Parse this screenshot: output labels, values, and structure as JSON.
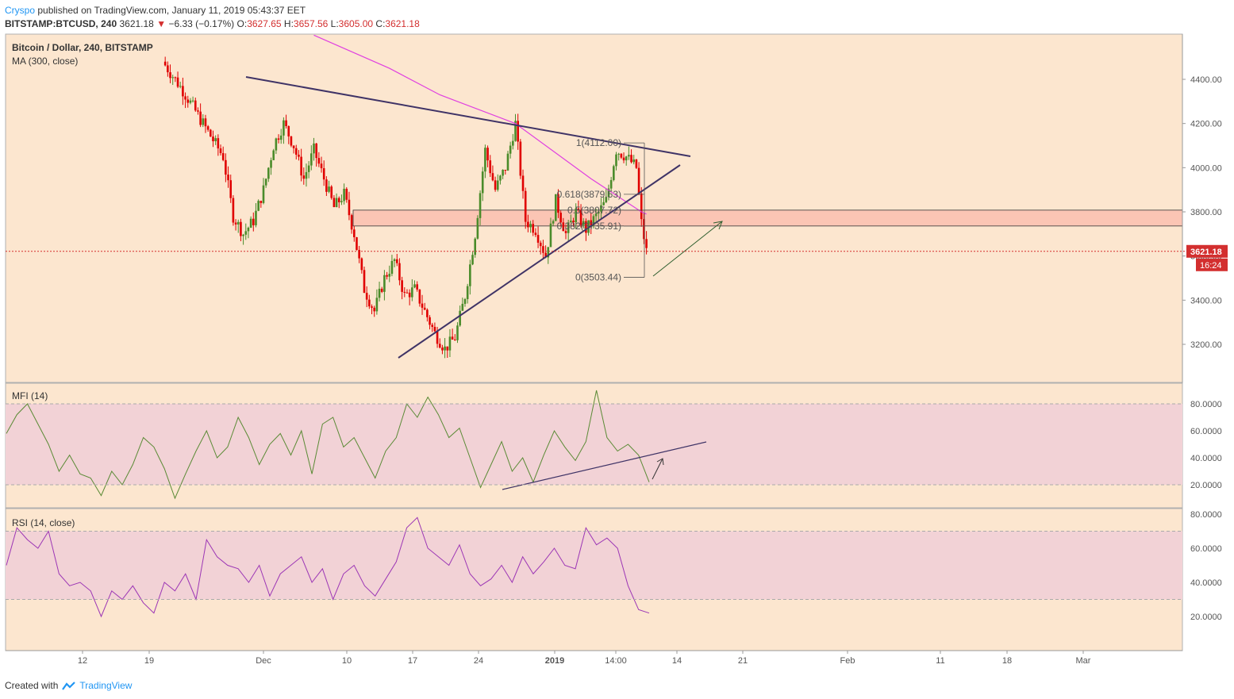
{
  "header": {
    "author": "Cryspo",
    "published": "published on TradingView.com, January 11, 2019 05:43:37 EET",
    "symbol": "BITSTAMP:BTCUSD, 240",
    "last": "3621.18",
    "change": "−6.33 (−0.17%)",
    "o_label": "O:",
    "o": "3627.65",
    "h_label": "H:",
    "h": "3657.56",
    "l_label": "L:",
    "l": "3605.00",
    "c_label": "C:",
    "c": "3621.18"
  },
  "footer": {
    "created_with": "Created with",
    "brand": "TradingView"
  },
  "colors": {
    "bg": "#fce6cf",
    "up": "#4a8b2a",
    "down": "#e00000",
    "ma": "#e040e0",
    "trend": "#3f3366",
    "zone": "#fbc5b4",
    "band": "#f2d2d6",
    "mfi": "#5a8a35",
    "rsi": "#9c36b5",
    "price_line": "#d32f2f"
  },
  "chart_data": [
    {
      "type": "candlestick",
      "title": "Bitcoin / Dollar, 240, BITSTAMP",
      "indicator": "MA (300, close)",
      "ylim": [
        3000,
        4600
      ],
      "yticks": [
        "4400.00",
        "4200.00",
        "4000.00",
        "3800.00",
        "3600.00",
        "3400.00",
        "3200.00"
      ],
      "xticks": [
        "12",
        "19",
        "Dec",
        "10",
        "17",
        "24",
        "2019",
        "14:00",
        "14",
        "21",
        "Feb",
        "11",
        "18",
        "Mar"
      ],
      "last_price": "3621.18",
      "countdown": "16:24",
      "fib_levels": [
        {
          "label": "1(4112.00)",
          "value": 4112.0
        },
        {
          "label": "0.618(3879.53)",
          "value": 3879.53
        },
        {
          "label": "0.5(3807.72)",
          "value": 3807.72
        },
        {
          "label": "0.382(3735.91)",
          "value": 3735.91
        },
        {
          "label": "0(3503.44)",
          "value": 3503.44
        }
      ],
      "resistance_zone": [
        3735.91,
        3807.72
      ],
      "price_path": [
        [
          0,
          4480
        ],
        [
          4,
          4350
        ],
        [
          8,
          4200
        ],
        [
          12,
          4050
        ],
        [
          14,
          3780
        ],
        [
          16,
          3700
        ],
        [
          18,
          3760
        ],
        [
          20,
          3900
        ],
        [
          22,
          4100
        ],
        [
          24,
          4200
        ],
        [
          26,
          4100
        ],
        [
          28,
          3950
        ],
        [
          30,
          4080
        ],
        [
          32,
          3950
        ],
        [
          34,
          3820
        ],
        [
          36,
          3880
        ],
        [
          38,
          3700
        ],
        [
          40,
          3450
        ],
        [
          42,
          3350
        ],
        [
          44,
          3500
        ],
        [
          46,
          3580
        ],
        [
          48,
          3420
        ],
        [
          50,
          3450
        ],
        [
          52,
          3350
        ],
        [
          54,
          3250
        ],
        [
          56,
          3180
        ],
        [
          58,
          3230
        ],
        [
          60,
          3420
        ],
        [
          62,
          3700
        ],
        [
          64,
          4080
        ],
        [
          66,
          3900
        ],
        [
          68,
          4000
        ],
        [
          70,
          4200
        ],
        [
          72,
          3760
        ],
        [
          74,
          3720
        ],
        [
          76,
          3600
        ],
        [
          78,
          3850
        ],
        [
          80,
          3700
        ],
        [
          82,
          3800
        ],
        [
          84,
          3720
        ],
        [
          86,
          3780
        ],
        [
          88,
          3850
        ],
        [
          90,
          4080
        ],
        [
          92,
          4050
        ],
        [
          94,
          4000
        ],
        [
          95,
          3750
        ],
        [
          96,
          3621
        ]
      ],
      "ma_path": [
        [
          30,
          4600
        ],
        [
          45,
          4450
        ],
        [
          55,
          4330
        ],
        [
          70,
          4200
        ],
        [
          85,
          3950
        ],
        [
          95,
          3800
        ],
        [
          96,
          3790
        ]
      ]
    },
    {
      "type": "line",
      "title": "MFI (14)",
      "ylim": [
        5,
        95
      ],
      "yticks": [
        "80.0000",
        "60.0000",
        "40.0000",
        "20.0000"
      ],
      "band": [
        20,
        80
      ],
      "values": [
        58,
        72,
        80,
        65,
        50,
        30,
        42,
        28,
        25,
        12,
        30,
        20,
        35,
        55,
        48,
        32,
        10,
        28,
        45,
        60,
        40,
        48,
        70,
        55,
        35,
        50,
        58,
        42,
        60,
        28,
        65,
        70,
        48,
        55,
        40,
        25,
        45,
        55,
        80,
        70,
        85,
        72,
        55,
        62,
        40,
        18,
        35,
        52,
        30,
        40,
        22,
        42,
        60,
        48,
        38,
        52,
        90,
        55,
        45,
        50,
        42,
        22
      ]
    },
    {
      "type": "line",
      "title": "RSI (14, close)",
      "ylim": [
        10,
        82
      ],
      "yticks": [
        "80.0000",
        "60.0000",
        "40.0000",
        "20.0000"
      ],
      "band": [
        30,
        70
      ],
      "values": [
        50,
        72,
        65,
        60,
        70,
        45,
        38,
        40,
        35,
        20,
        35,
        30,
        38,
        28,
        22,
        40,
        35,
        45,
        30,
        65,
        55,
        50,
        48,
        40,
        50,
        32,
        45,
        50,
        55,
        40,
        48,
        30,
        45,
        50,
        38,
        32,
        42,
        52,
        72,
        78,
        60,
        55,
        50,
        62,
        45,
        38,
        42,
        50,
        40,
        55,
        45,
        52,
        60,
        50,
        48,
        72,
        62,
        66,
        60,
        38,
        24,
        22
      ]
    }
  ]
}
